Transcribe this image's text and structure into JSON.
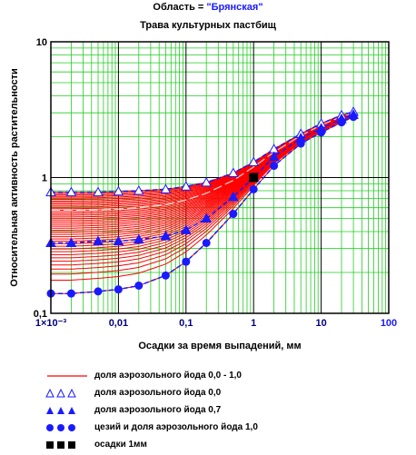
{
  "title_prefix": "Область = ",
  "region": "\"Брянская\"",
  "subtitle": "Трава культурных пастбищ",
  "chart_data": {
    "type": "line",
    "xlabel": "Осадки за время выпадений, мм",
    "ylabel": "Относительная  активность растительности",
    "x_scale": "log",
    "y_scale": "log",
    "xlim": [
      0.001,
      100
    ],
    "ylim": [
      0.1,
      10
    ],
    "x_ticks": [
      {
        "v": 0.001,
        "label": "1×10⁻³"
      },
      {
        "v": 0.01,
        "label": "0,01"
      },
      {
        "v": 0.1,
        "label": "0,1"
      },
      {
        "v": 1,
        "label": "1"
      },
      {
        "v": 10,
        "label": "10"
      },
      {
        "v": 100,
        "label": "100"
      }
    ],
    "y_ticks": [
      {
        "v": 0.1,
        "label": "0,1"
      },
      {
        "v": 1,
        "label": "1"
      },
      {
        "v": 10,
        "label": "10"
      }
    ],
    "grid": true,
    "band": {
      "name": "доля аэрозольного йода 0,0 - 1,0",
      "color": "#ff0000",
      "lower_series": "цезий и доля аэрозольного йода  1,0",
      "upper_series": "доля аэрозольного йода 0,0"
    },
    "series": [
      {
        "name": "доля аэрозольного йода 0,0",
        "color": "#1a1aff",
        "marker": "triangle-open",
        "x": [
          0.001,
          0.002,
          0.005,
          0.01,
          0.02,
          0.05,
          0.1,
          0.2,
          0.5,
          1,
          2,
          5,
          10,
          20,
          30
        ],
        "y": [
          0.78,
          0.78,
          0.78,
          0.79,
          0.8,
          0.82,
          0.86,
          0.92,
          1.08,
          1.3,
          1.62,
          2.1,
          2.5,
          2.88,
          3.05
        ]
      },
      {
        "name": "доля аэрозольного йода 0,7",
        "color": "#1a1aff",
        "marker": "triangle-filled",
        "x": [
          0.001,
          0.002,
          0.005,
          0.01,
          0.02,
          0.05,
          0.1,
          0.2,
          0.5,
          1,
          2,
          5,
          10,
          20,
          30
        ],
        "y": [
          0.33,
          0.33,
          0.34,
          0.34,
          0.35,
          0.37,
          0.41,
          0.5,
          0.72,
          1.0,
          1.42,
          1.95,
          2.3,
          2.7,
          2.9
        ]
      },
      {
        "name": "цезий и доля аэрозольного йода  1,0",
        "color": "#1a1aff",
        "marker": "circle-filled",
        "x": [
          0.001,
          0.002,
          0.005,
          0.01,
          0.02,
          0.05,
          0.1,
          0.2,
          0.5,
          1,
          2,
          5,
          10,
          20,
          30
        ],
        "y": [
          0.14,
          0.14,
          0.145,
          0.15,
          0.16,
          0.19,
          0.24,
          0.33,
          0.54,
          0.82,
          1.22,
          1.78,
          2.15,
          2.55,
          2.8
        ]
      }
    ],
    "reference_point": {
      "name": "осадки 1мм",
      "color": "#000000",
      "x": 1,
      "y": 1.0
    },
    "legend": [
      {
        "label": "доля аэрозольного йода 0,0 - 1,0",
        "icon": "red-line"
      },
      {
        "label": "доля аэрозольного йода 0,0",
        "icon": "open-triangles"
      },
      {
        "label": "доля аэрозольного йода 0,7",
        "icon": "filled-triangles"
      },
      {
        "label": "цезий и доля аэрозольного йода  1,0",
        "icon": "filled-circles"
      },
      {
        "label": "осадки 1мм",
        "icon": "black-squares"
      }
    ],
    "legend_position": "below"
  }
}
